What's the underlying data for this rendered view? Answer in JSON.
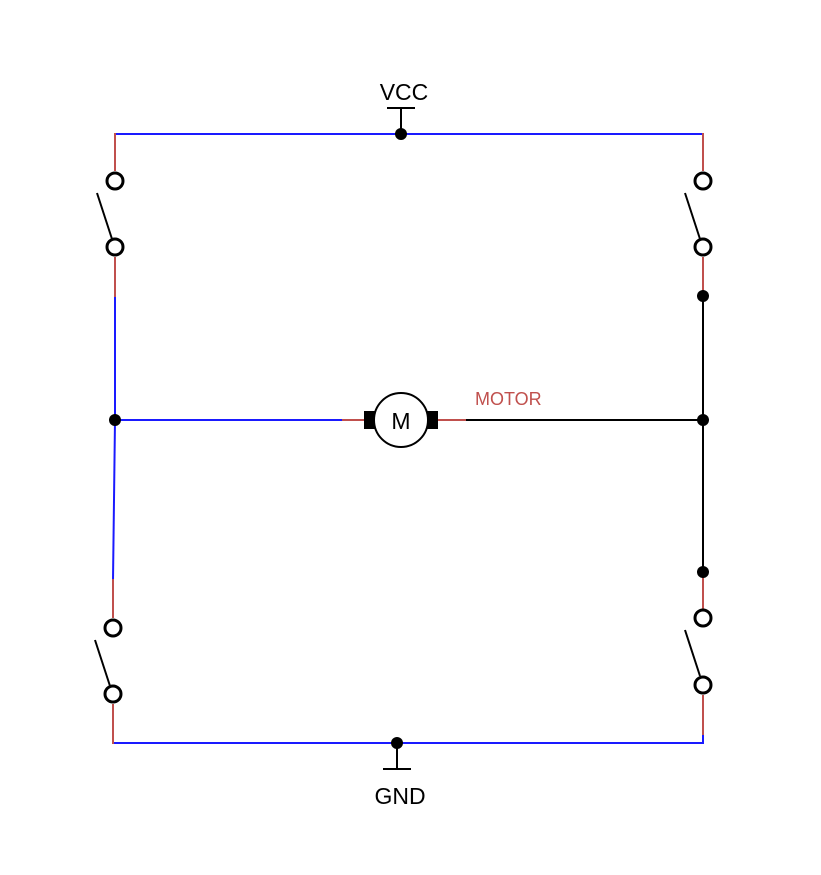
{
  "labels": {
    "vcc": "VCC",
    "gnd": "GND",
    "motor_net": "MOTOR",
    "motor_symbol": "M"
  },
  "colors": {
    "background": "#ffffff",
    "powered_wire": "#1a1aff",
    "pin_stub": "#c0504d",
    "unpowered_wire": "#000000",
    "net_label": "#c0504d",
    "component": "#000000"
  },
  "components": {
    "switches": [
      "switch-top-left",
      "switch-top-right",
      "switch-bottom-left",
      "switch-bottom-right"
    ],
    "motor": "dc-motor",
    "power_symbols": [
      "vcc-supply",
      "ground"
    ]
  }
}
